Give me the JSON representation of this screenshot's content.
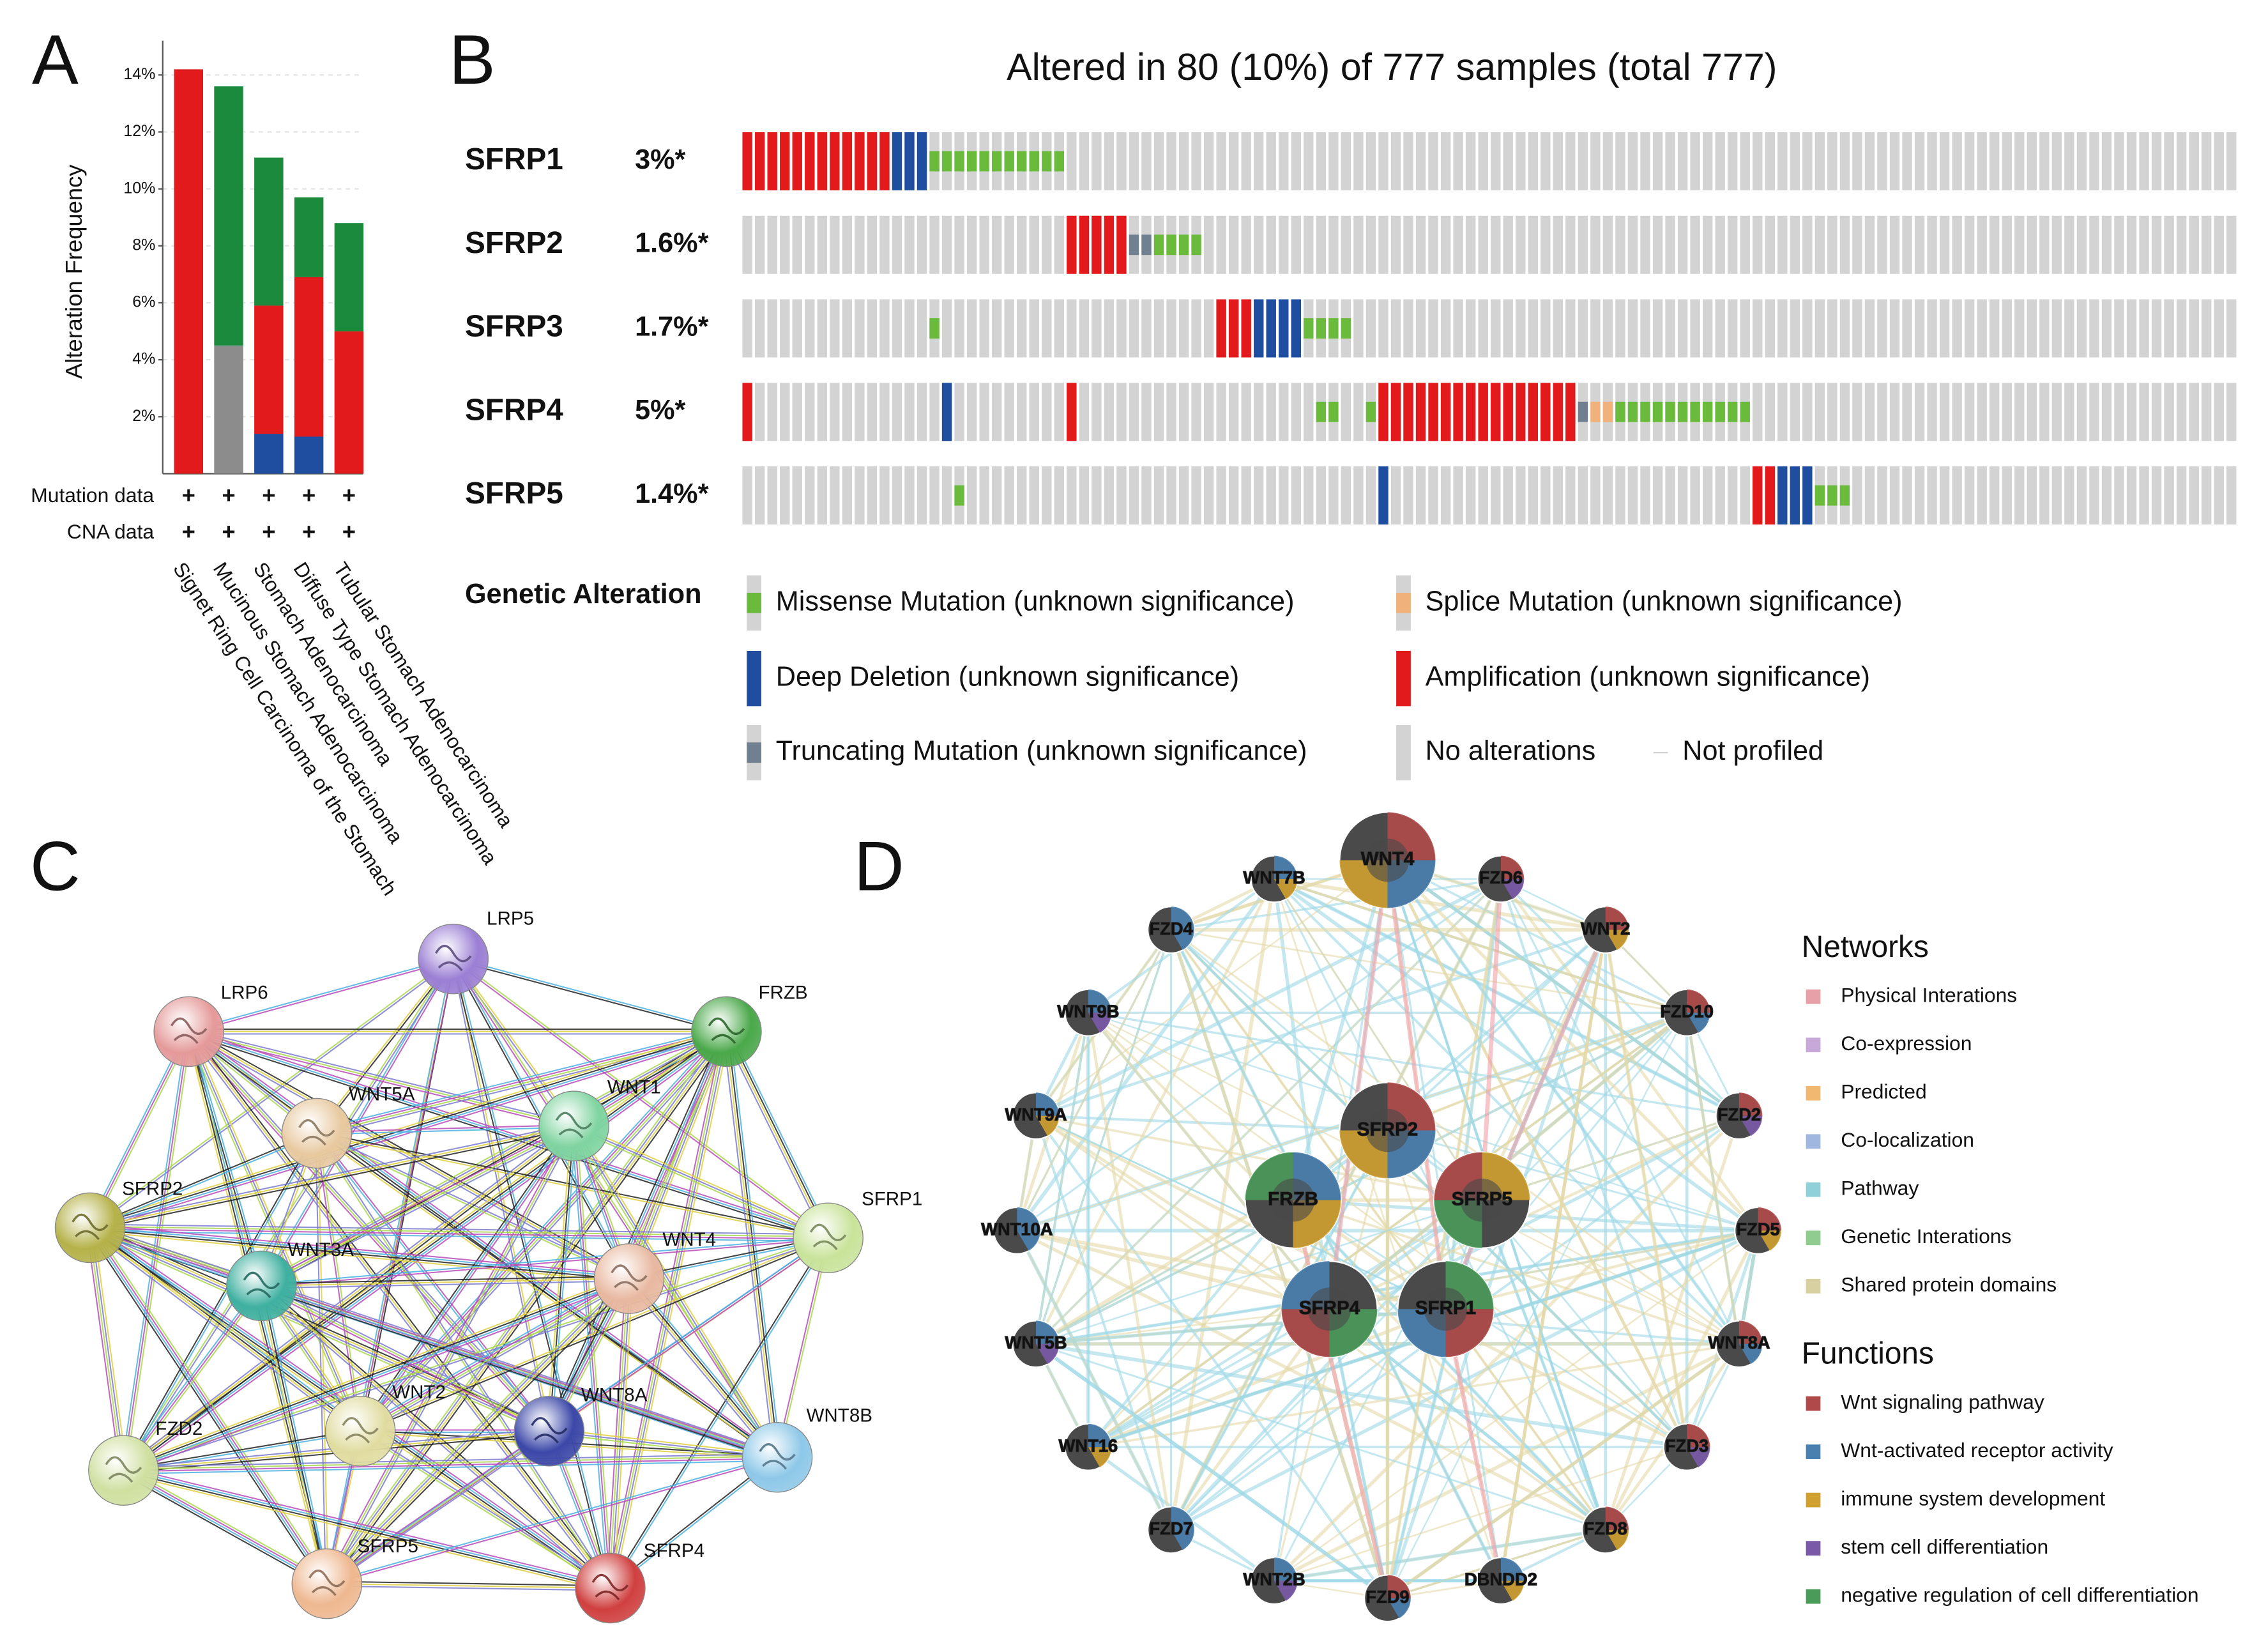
{
  "panel_labels": [
    "A",
    "B",
    "C",
    "D"
  ],
  "chart_data": [
    {
      "type": "bar",
      "stacked": true,
      "ylabel": "Alteration Frequency",
      "categories": [
        "Signet Ring Cell Carcinoma of the Stomach",
        "Mucinous Stomach Adenocarcinoma",
        "Stomach Adenocarcinoma",
        "Diffuse Type Stomach Adenocarcinoma",
        "Tubular Stomach Adenocarcinoma"
      ],
      "series": [
        {
          "color": "#1f4ea1",
          "values": [
            0,
            0,
            1.4,
            1.3,
            0
          ]
        },
        {
          "color": "#8c8c8c",
          "values": [
            0,
            4.5,
            0,
            0,
            0
          ]
        },
        {
          "color": "#e31a1c",
          "values": [
            14.2,
            0,
            4.5,
            5.6,
            5.0
          ]
        },
        {
          "color": "#1b8a3c",
          "values": [
            0,
            9.1,
            5.2,
            2.8,
            3.8
          ]
        }
      ],
      "ylim": [
        0,
        15
      ],
      "yticks": [
        {
          "value": 2,
          "label": "2%"
        },
        {
          "value": 4,
          "label": "4%"
        },
        {
          "value": 6,
          "label": "6%"
        },
        {
          "value": 8,
          "label": "8%"
        },
        {
          "value": 10,
          "label": "10%"
        },
        {
          "value": 12,
          "label": "12%"
        },
        {
          "value": 14,
          "label": "14%"
        }
      ],
      "grid": true,
      "rows": [
        {
          "label": "Mutation data",
          "marks": [
            "+",
            "+",
            "+",
            "+",
            "+"
          ]
        },
        {
          "label": "CNA data",
          "marks": [
            "+",
            "+",
            "+",
            "+",
            "+"
          ]
        }
      ]
    }
  ],
  "oncoprint": {
    "title": "Altered in 80 (10%) of 777 samples (total 777)",
    "genes": [
      {
        "name": "SFRP1",
        "percent": "3%*",
        "runs": [
          [
            3,
            12
          ],
          [
            2,
            3
          ],
          [
            0,
            11
          ],
          [
            5,
            94
          ]
        ]
      },
      {
        "name": "SFRP2",
        "percent": "1.6%*",
        "runs": [
          [
            5,
            26
          ],
          [
            3,
            5
          ],
          [
            4,
            2
          ],
          [
            0,
            4
          ],
          [
            5,
            83
          ]
        ]
      },
      {
        "name": "SFRP3",
        "percent": "1.7%*",
        "runs": [
          [
            5,
            15
          ],
          [
            0,
            1
          ],
          [
            5,
            22
          ],
          [
            3,
            3
          ],
          [
            2,
            4
          ],
          [
            0,
            4
          ],
          [
            5,
            71
          ]
        ]
      },
      {
        "name": "SFRP4",
        "percent": "5%*",
        "runs": [
          [
            3,
            1
          ],
          [
            5,
            15
          ],
          [
            2,
            1
          ],
          [
            5,
            9
          ],
          [
            3,
            1
          ],
          [
            5,
            19
          ],
          [
            0,
            2
          ],
          [
            5,
            2
          ],
          [
            0,
            1
          ],
          [
            3,
            16
          ],
          [
            4,
            1
          ],
          [
            1,
            2
          ],
          [
            0,
            11
          ],
          [
            5,
            39
          ]
        ]
      },
      {
        "name": "SFRP5",
        "percent": "1.4%*",
        "runs": [
          [
            5,
            17
          ],
          [
            0,
            1
          ],
          [
            5,
            33
          ],
          [
            2,
            1
          ],
          [
            5,
            29
          ],
          [
            3,
            2
          ],
          [
            2,
            3
          ],
          [
            0,
            3
          ],
          [
            5,
            31
          ]
        ]
      }
    ],
    "legend_title": "Genetic Alteration",
    "legend": [
      {
        "label": "Missense Mutation (unknown significance)",
        "color": "#6abb3c",
        "glyph": "half"
      },
      {
        "label": "Splice Mutation (unknown significance)",
        "color": "#f0b27a",
        "glyph": "half"
      },
      {
        "label": "Deep Deletion (unknown significance)",
        "color": "#1f4ea1",
        "glyph": "full"
      },
      {
        "label": "Amplification (unknown significance)",
        "color": "#e31a1c",
        "glyph": "full"
      },
      {
        "label": "Truncating Mutation (unknown significance)",
        "color": "#708090",
        "glyph": "half"
      },
      {
        "label": "No alterations",
        "color": "#d3d3d3",
        "glyph": "none"
      },
      {
        "label": "Not profiled",
        "color": "#d3d3d3",
        "glyph": "line"
      }
    ]
  },
  "string_network": {
    "nodes": [
      {
        "label": "LRP5",
        "color": "#9b7fd4"
      },
      {
        "label": "LRP6",
        "color": "#e59a9a"
      },
      {
        "label": "FRZB",
        "color": "#4aa84a"
      },
      {
        "label": "WNT5A",
        "color": "#e8c9a0"
      },
      {
        "label": "WNT1",
        "color": "#7fd4a0"
      },
      {
        "label": "SFRP2",
        "color": "#b5b24a"
      },
      {
        "label": "SFRP1",
        "color": "#c9e39a"
      },
      {
        "label": "WNT3A",
        "color": "#3fb0a0"
      },
      {
        "label": "WNT4",
        "color": "#e8b8a0"
      },
      {
        "label": "WNT2",
        "color": "#e0dca0"
      },
      {
        "label": "WNT8A",
        "color": "#3c48a8"
      },
      {
        "label": "FZD2",
        "color": "#cfe0a0"
      },
      {
        "label": "WNT8B",
        "color": "#8ec8e8"
      },
      {
        "label": "SFRP5",
        "color": "#eeb890"
      },
      {
        "label": "SFRP4",
        "color": "#d04040"
      }
    ]
  },
  "genemania_network": {
    "nodes": [
      {
        "label": "WNT4"
      },
      {
        "label": "WNT7B"
      },
      {
        "label": "FZD6"
      },
      {
        "label": "FZD4"
      },
      {
        "label": "WNT2"
      },
      {
        "label": "WNT9B"
      },
      {
        "label": "FZD10"
      },
      {
        "label": "WNT9A"
      },
      {
        "label": "FZD2"
      },
      {
        "label": "WNT10A"
      },
      {
        "label": "FZD5"
      },
      {
        "label": "WNT5B"
      },
      {
        "label": "WNT8A"
      },
      {
        "label": "WNT16"
      },
      {
        "label": "FZD3"
      },
      {
        "label": "FZD7"
      },
      {
        "label": "FZD8"
      },
      {
        "label": "WNT2B"
      },
      {
        "label": "FZD9"
      },
      {
        "label": "DBNDD2"
      },
      {
        "label": "SFRP2"
      },
      {
        "label": "FRZB"
      },
      {
        "label": "SFRP5"
      },
      {
        "label": "SFRP4"
      },
      {
        "label": "SFRP1"
      }
    ],
    "legend_sections": [
      {
        "title": "Networks",
        "items": [
          {
            "label": "Physical Interations",
            "color": "#e8a0a8"
          },
          {
            "label": "Co-expression",
            "color": "#c8a8d8"
          },
          {
            "label": "Predicted",
            "color": "#f0b870"
          },
          {
            "label": "Co-localization",
            "color": "#a0b8e0"
          },
          {
            "label": "Pathway",
            "color": "#90d0d8"
          },
          {
            "label": "Genetic Interations",
            "color": "#90cc90"
          },
          {
            "label": "Shared protein domains",
            "color": "#d8d0a0"
          }
        ]
      },
      {
        "title": "Functions",
        "items": [
          {
            "label": "Wnt signaling pathway",
            "color": "#b04a4a"
          },
          {
            "label": "Wnt-activated receptor activity",
            "color": "#4a80b0"
          },
          {
            "label": "immune system development",
            "color": "#d0a030"
          },
          {
            "label": "stem cell differentiation",
            "color": "#7a5aa8"
          },
          {
            "label": "negative regulation of cell differentiation",
            "color": "#4a9a5a"
          }
        ]
      }
    ]
  }
}
